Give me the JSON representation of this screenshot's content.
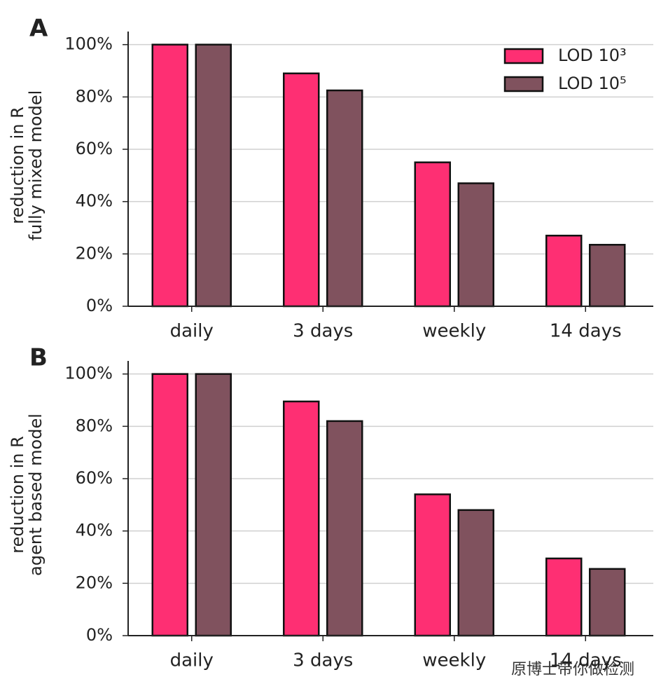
{
  "chart_data": [
    {
      "type": "bar",
      "panel_label": "A",
      "ylabel": [
        "reduction in R",
        "fully mixed model"
      ],
      "categories": [
        "daily",
        "3 days",
        "weekly",
        "14 days"
      ],
      "series": [
        {
          "name": "LOD 10³",
          "color": "#fe2f73",
          "values": [
            100,
            89,
            55,
            27
          ]
        },
        {
          "name": "LOD 10⁵",
          "color": "#80525e",
          "values": [
            100,
            82.5,
            47,
            23.5
          ]
        }
      ],
      "ylim": [
        0,
        105
      ],
      "yticks": [
        {
          "value": 0,
          "label": "0%"
        },
        {
          "value": 20,
          "label": "20%"
        },
        {
          "value": 40,
          "label": "40%"
        },
        {
          "value": 60,
          "label": "60%"
        },
        {
          "value": 80,
          "label": "80%"
        },
        {
          "value": 100,
          "label": "100%"
        }
      ],
      "grid": true,
      "legend": "upper right"
    },
    {
      "type": "bar",
      "panel_label": "B",
      "ylabel": [
        "reduction in R",
        "agent based model"
      ],
      "categories": [
        "daily",
        "3 days",
        "weekly",
        "14 days"
      ],
      "series": [
        {
          "name": "LOD 10³",
          "color": "#fe2f73",
          "values": [
            100,
            89.5,
            54,
            29.5
          ]
        },
        {
          "name": "LOD 10⁵",
          "color": "#80525e",
          "values": [
            100,
            82,
            48,
            25.5
          ]
        }
      ],
      "ylim": [
        0,
        105
      ],
      "yticks": [
        {
          "value": 0,
          "label": "0%"
        },
        {
          "value": 20,
          "label": "20%"
        },
        {
          "value": 40,
          "label": "40%"
        },
        {
          "value": 60,
          "label": "60%"
        },
        {
          "value": 80,
          "label": "80%"
        },
        {
          "value": 100,
          "label": "100%"
        }
      ],
      "grid": true
    }
  ],
  "watermark": "原博士带你做检测"
}
